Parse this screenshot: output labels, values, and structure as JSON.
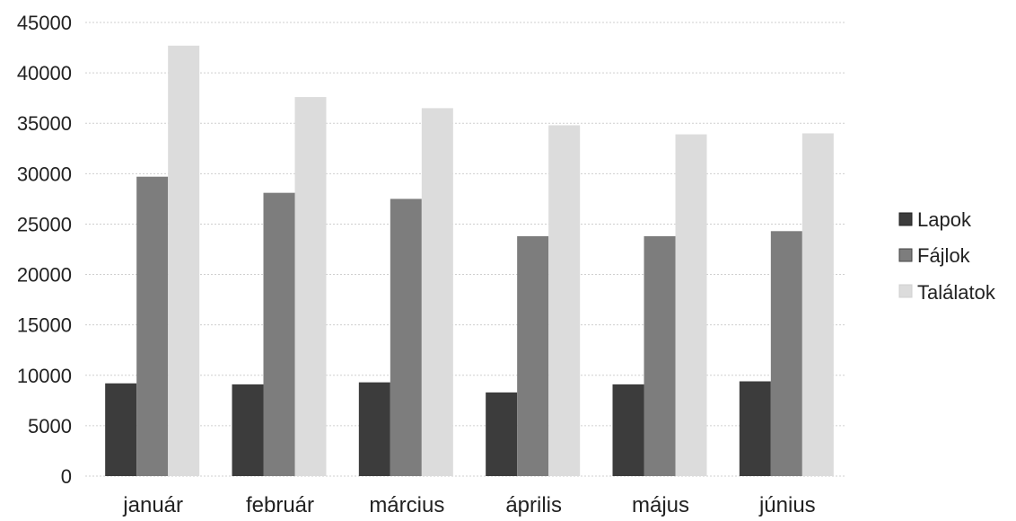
{
  "chart_data": {
    "type": "bar",
    "categories": [
      "január",
      "február",
      "március",
      "április",
      "május",
      "június"
    ],
    "series": [
      {
        "name": "Lapok",
        "values": [
          9200,
          9100,
          9300,
          8300,
          9100,
          9400
        ],
        "color": "#3c3c3c"
      },
      {
        "name": "Fájlok",
        "values": [
          29700,
          28100,
          27500,
          23800,
          23800,
          24300
        ],
        "color": "#7d7d7d"
      },
      {
        "name": "Találatok",
        "values": [
          42700,
          37600,
          36500,
          34800,
          33900,
          34000
        ],
        "color": "#dcdcdc"
      }
    ],
    "ylim": [
      0,
      45000
    ],
    "yticks": [
      "0",
      "5000",
      "10000",
      "15000",
      "20000",
      "25000",
      "30000",
      "35000",
      "40000",
      "45000"
    ],
    "grid": true,
    "legend_position": "right",
    "title": "",
    "xlabel": "",
    "ylabel": ""
  }
}
